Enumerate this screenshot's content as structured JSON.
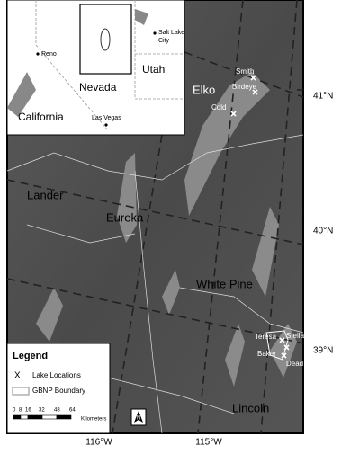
{
  "inset": {
    "states": [
      "Nevada",
      "Utah",
      "California"
    ],
    "cities": {
      "reno": "Reno",
      "salt_lake_city": [
        "Salt Lake",
        "City"
      ],
      "las_vegas": "Las Vegas"
    }
  },
  "map": {
    "counties": [
      "Elko",
      "Lander",
      "Eureka",
      "White Pine",
      "Lincoln"
    ],
    "lakes": [
      "Smith",
      "Birdeye",
      "Cold",
      "Teresa",
      "Stella",
      "Baker",
      "Dead"
    ],
    "latitudes": [
      "41°N",
      "40°N",
      "39°N"
    ],
    "longitudes": [
      "116°W",
      "115°W"
    ]
  },
  "legend": {
    "title": "Legend",
    "marker": "X",
    "items": [
      "Lake Locations",
      "GBNP Boundary"
    ],
    "scale": {
      "ticks": [
        "0",
        "8",
        "16",
        "32",
        "48",
        "64"
      ],
      "unit": "Kilometers"
    },
    "north": "N"
  }
}
